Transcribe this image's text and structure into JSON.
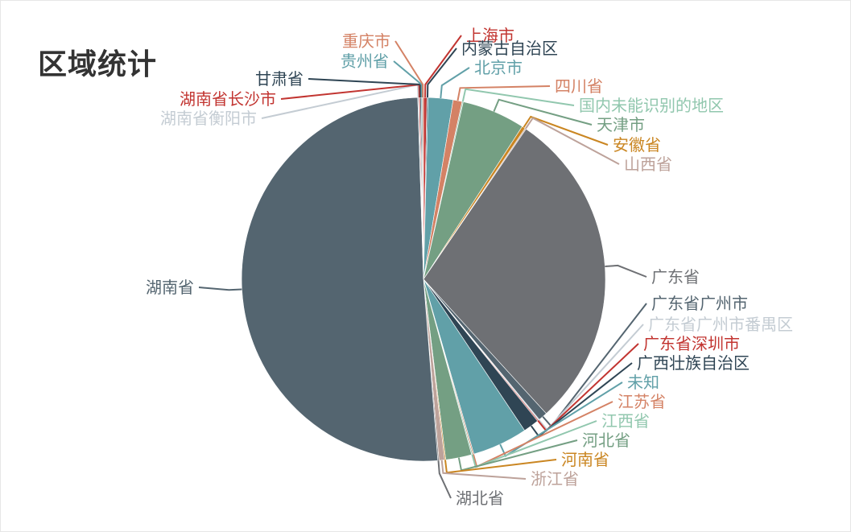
{
  "title": "区域统计",
  "chart_data": {
    "type": "pie",
    "title": "区域统计",
    "slices": [
      {
        "name": "上海市",
        "value": 0.3,
        "color": "#c23531"
      },
      {
        "name": "内蒙古自治区",
        "value": 0.1,
        "color": "#2f4554"
      },
      {
        "name": "北京市",
        "value": 2.2,
        "color": "#61a0a8"
      },
      {
        "name": "四川省",
        "value": 0.8,
        "color": "#d48265"
      },
      {
        "name": "国内未能识别的地区",
        "value": 0.1,
        "color": "#91c7ae"
      },
      {
        "name": "天津市",
        "value": 5.6,
        "color": "#749f83"
      },
      {
        "name": "安徽省",
        "value": 0.3,
        "color": "#ca8622"
      },
      {
        "name": "山西省",
        "value": 0.1,
        "color": "#bda29a"
      },
      {
        "name": "广东省",
        "value": 28.6,
        "color": "#6e7074"
      },
      {
        "name": "广东省广州市",
        "value": 0.8,
        "color": "#546570"
      },
      {
        "name": "广东省广州市番禺区",
        "value": 0.1,
        "color": "#c4ccd3"
      },
      {
        "name": "广东省深圳市",
        "value": 0.1,
        "color": "#c23531"
      },
      {
        "name": "广西壮族自治区",
        "value": 1.4,
        "color": "#2f4554"
      },
      {
        "name": "未知",
        "value": 4.9,
        "color": "#61a0a8"
      },
      {
        "name": "江苏省",
        "value": 0.1,
        "color": "#d48265"
      },
      {
        "name": "江西省",
        "value": 0.1,
        "color": "#91c7ae"
      },
      {
        "name": "河北省",
        "value": 2.3,
        "color": "#749f83"
      },
      {
        "name": "河南省",
        "value": 0.1,
        "color": "#ca8622"
      },
      {
        "name": "浙江省",
        "value": 0.5,
        "color": "#bda29a"
      },
      {
        "name": "湖北省",
        "value": 0.1,
        "color": "#6e7074"
      },
      {
        "name": "湖南省",
        "value": 50.6,
        "color": "#546570"
      },
      {
        "name": "湖南省衡阳市",
        "value": 0.1,
        "color": "#c4ccd3"
      },
      {
        "name": "湖南省长沙市",
        "value": 0.1,
        "color": "#c23531"
      },
      {
        "name": "甘肃省",
        "value": 0.1,
        "color": "#2f4554"
      },
      {
        "name": "贵州省",
        "value": 0.1,
        "color": "#61a0a8"
      },
      {
        "name": "重庆市",
        "value": 0.1,
        "color": "#d48265"
      }
    ]
  }
}
